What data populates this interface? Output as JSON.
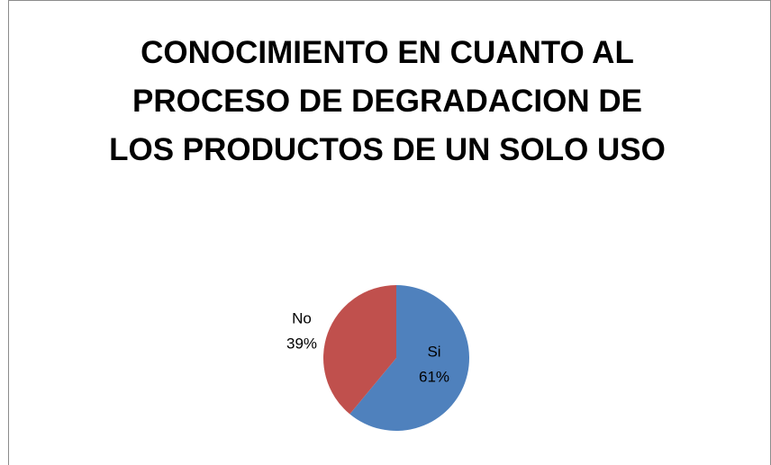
{
  "chart_data": {
    "type": "pie",
    "title": "CONOCIMIENTO EN CUANTO AL PROCESO DE DEGRADACION DE LOS PRODUCTOS DE UN SOLO USO",
    "categories": [
      "Si",
      "No"
    ],
    "values": [
      61,
      39
    ],
    "value_labels": [
      "61%",
      "39%"
    ],
    "colors": [
      "#4f81bd",
      "#c0504d"
    ]
  }
}
